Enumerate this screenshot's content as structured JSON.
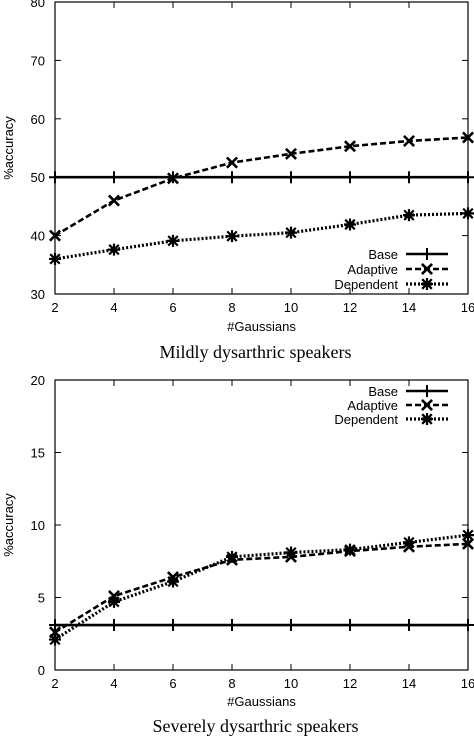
{
  "chart_data": [
    {
      "type": "line",
      "caption": "Mildly dysarthric speakers",
      "xlabel": "#Gaussians",
      "ylabel": "%accuracy",
      "xlim": [
        2,
        16
      ],
      "ylim": [
        30,
        80
      ],
      "xticks": [
        2,
        4,
        6,
        8,
        10,
        12,
        14,
        16
      ],
      "yticks": [
        30,
        40,
        50,
        60,
        70,
        80
      ],
      "grid": false,
      "legend_position": "bottom-right",
      "x": [
        2,
        4,
        6,
        8,
        10,
        12,
        14,
        16
      ],
      "series": [
        {
          "name": "Base",
          "style": "solid",
          "marker": "plus",
          "values": [
            50,
            50,
            50,
            50,
            50,
            50,
            50,
            50
          ]
        },
        {
          "name": "Adaptive",
          "style": "dashed",
          "marker": "cross",
          "values": [
            40,
            46,
            49.8,
            52.5,
            54,
            55.3,
            56.2,
            56.8
          ]
        },
        {
          "name": "Dependent",
          "style": "dotted",
          "marker": "star",
          "values": [
            36,
            37.6,
            39.1,
            39.9,
            40.5,
            41.9,
            43.5,
            43.8
          ]
        }
      ]
    },
    {
      "type": "line",
      "caption": "Severely dysarthric speakers",
      "xlabel": "#Gaussians",
      "ylabel": "%accuracy",
      "xlim": [
        2,
        16
      ],
      "ylim": [
        0,
        20
      ],
      "xticks": [
        2,
        4,
        6,
        8,
        10,
        12,
        14,
        16
      ],
      "yticks": [
        0,
        5,
        10,
        15,
        20
      ],
      "grid": false,
      "legend_position": "top-right",
      "x": [
        2,
        4,
        6,
        8,
        10,
        12,
        14,
        16
      ],
      "series": [
        {
          "name": "Base",
          "style": "solid",
          "marker": "plus",
          "values": [
            3.1,
            3.1,
            3.1,
            3.1,
            3.1,
            3.1,
            3.1,
            3.1
          ]
        },
        {
          "name": "Adaptive",
          "style": "dashed",
          "marker": "cross",
          "values": [
            2.6,
            5.1,
            6.4,
            7.6,
            7.8,
            8.2,
            8.5,
            8.7
          ]
        },
        {
          "name": "Dependent",
          "style": "dotted",
          "marker": "star",
          "values": [
            2.1,
            4.7,
            6.1,
            7.8,
            8.1,
            8.3,
            8.8,
            9.3
          ]
        }
      ]
    }
  ]
}
